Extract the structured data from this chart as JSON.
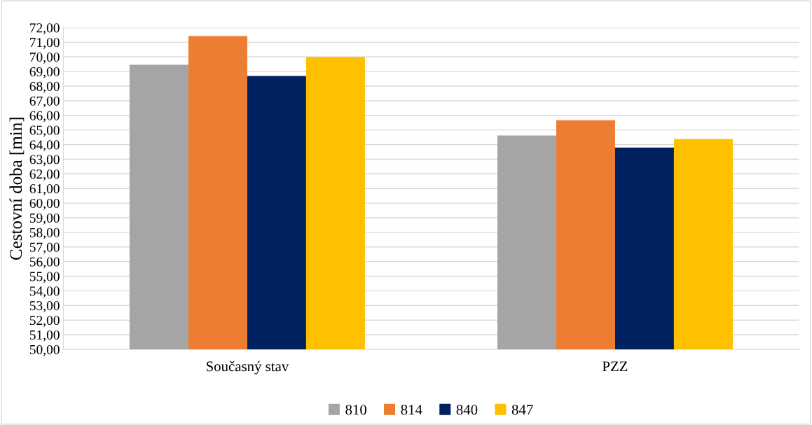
{
  "chart_data": {
    "type": "bar",
    "ylabel": "Cestovní doba [min]",
    "categories": [
      "Současný stav",
      "PZZ"
    ],
    "series": [
      {
        "name": "810",
        "color": "#a5a5a5",
        "values": [
          69.46,
          64.62
        ]
      },
      {
        "name": "814",
        "color": "#ed7d31",
        "values": [
          71.42,
          65.67
        ]
      },
      {
        "name": "840",
        "color": "#002060",
        "values": [
          68.69,
          63.8
        ]
      },
      {
        "name": "847",
        "color": "#ffc000",
        "values": [
          69.99,
          64.38
        ]
      }
    ],
    "ylim": [
      50,
      72
    ],
    "yticks": [
      {
        "value": 50,
        "label": "50,00"
      },
      {
        "value": 51,
        "label": "51,00"
      },
      {
        "value": 52,
        "label": "52,00"
      },
      {
        "value": 53,
        "label": "53,00"
      },
      {
        "value": 54,
        "label": "54,00"
      },
      {
        "value": 55,
        "label": "55,00"
      },
      {
        "value": 56,
        "label": "56,00"
      },
      {
        "value": 57,
        "label": "57,00"
      },
      {
        "value": 58,
        "label": "58,00"
      },
      {
        "value": 59,
        "label": "59,00"
      },
      {
        "value": 60,
        "label": "60,00"
      },
      {
        "value": 61,
        "label": "61,00"
      },
      {
        "value": 62,
        "label": "62,00"
      },
      {
        "value": 63,
        "label": "63,00"
      },
      {
        "value": 64,
        "label": "64,00"
      },
      {
        "value": 65,
        "label": "65,00"
      },
      {
        "value": 66,
        "label": "66,00"
      },
      {
        "value": 67,
        "label": "67,00"
      },
      {
        "value": 68,
        "label": "68,00"
      },
      {
        "value": 69,
        "label": "69,00"
      },
      {
        "value": 70,
        "label": "70,00"
      },
      {
        "value": 71,
        "label": "71,00"
      },
      {
        "value": 72,
        "label": "72,00"
      }
    ],
    "grid": "y",
    "legend": "bottom"
  }
}
